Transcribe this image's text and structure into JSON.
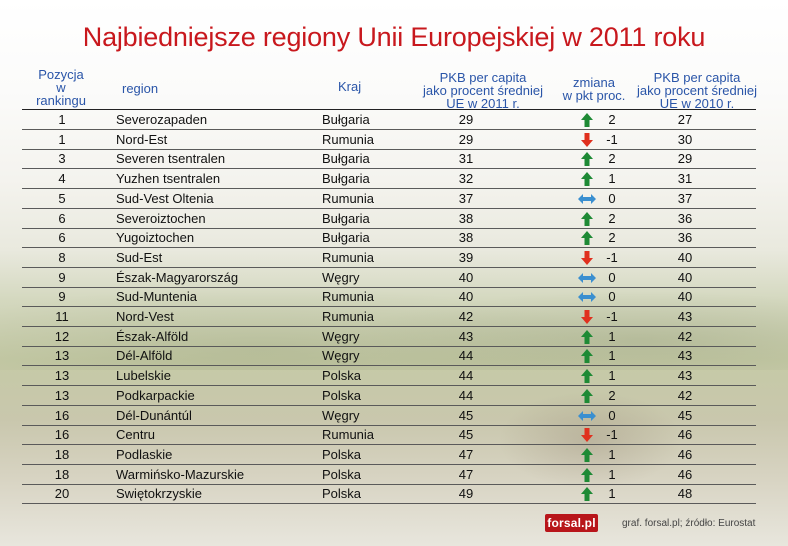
{
  "title": "Najbiedniejsze regiony Unii Europejskiej w 2011 roku",
  "headers": {
    "rank": [
      "Pozycja",
      "w",
      "rankingu"
    ],
    "region": "region",
    "country": "Kraj",
    "gdp2011": [
      "PKB per capita",
      "jako procent średniej",
      "UE w 2011 r."
    ],
    "change": [
      "zmiana",
      "w pkt proc."
    ],
    "gdp2010": [
      "PKB per capita",
      "jako procent średniej",
      "UE w 2010 r."
    ]
  },
  "colors": {
    "up": "#1e8a35",
    "down": "#e0301e",
    "same": "#3a8fd0",
    "title": "#c8181d",
    "header": "#2a55a8"
  },
  "chart_data": {
    "type": "table",
    "title": "Najbiedniejsze regiony Unii Europejskiej w 2011 roku",
    "columns": [
      "Pozycja w rankingu",
      "region",
      "Kraj",
      "PKB per capita jako procent średniej UE w 2011 r.",
      "zmiana w pkt proc.",
      "PKB per capita jako procent średniej UE w 2010 r."
    ],
    "rows": [
      {
        "rank": "1",
        "region": "Severozapaden",
        "country": "Bułgaria",
        "gdp2011": "29",
        "change": "2",
        "trend": "up",
        "gdp2010": "27"
      },
      {
        "rank": "1",
        "region": "Nord-Est",
        "country": "Rumunia",
        "gdp2011": "29",
        "change": "-1",
        "trend": "down",
        "gdp2010": "30"
      },
      {
        "rank": "3",
        "region": "Severen tsentralen",
        "country": "Bułgaria",
        "gdp2011": "31",
        "change": "2",
        "trend": "up",
        "gdp2010": "29"
      },
      {
        "rank": "4",
        "region": "Yuzhen tsentralen",
        "country": "Bułgaria",
        "gdp2011": "32",
        "change": "1",
        "trend": "up",
        "gdp2010": "31"
      },
      {
        "rank": "5",
        "region": "Sud-Vest Oltenia",
        "country": "Rumunia",
        "gdp2011": "37",
        "change": "0",
        "trend": "same",
        "gdp2010": "37"
      },
      {
        "rank": "6",
        "region": "Severoiztochen",
        "country": "Bułgaria",
        "gdp2011": "38",
        "change": "2",
        "trend": "up",
        "gdp2010": "36"
      },
      {
        "rank": "6",
        "region": "Yugoiztochen",
        "country": "Bułgaria",
        "gdp2011": "38",
        "change": "2",
        "trend": "up",
        "gdp2010": "36"
      },
      {
        "rank": "8",
        "region": "Sud-Est",
        "country": "Rumunia",
        "gdp2011": "39",
        "change": "-1",
        "trend": "down",
        "gdp2010": "40"
      },
      {
        "rank": "9",
        "region": "Észak-Magyarország",
        "country": "Węgry",
        "gdp2011": "40",
        "change": "0",
        "trend": "same",
        "gdp2010": "40"
      },
      {
        "rank": "9",
        "region": "Sud-Muntenia",
        "country": "Rumunia",
        "gdp2011": "40",
        "change": "0",
        "trend": "same",
        "gdp2010": "40"
      },
      {
        "rank": "11",
        "region": "Nord-Vest",
        "country": "Rumunia",
        "gdp2011": "42",
        "change": "-1",
        "trend": "down",
        "gdp2010": "43"
      },
      {
        "rank": "12",
        "region": "Észak-Alföld",
        "country": "Węgry",
        "gdp2011": "43",
        "change": "1",
        "trend": "up",
        "gdp2010": "42"
      },
      {
        "rank": "13",
        "region": "Dél-Alföld",
        "country": "Węgry",
        "gdp2011": "44",
        "change": "1",
        "trend": "up",
        "gdp2010": "43"
      },
      {
        "rank": "13",
        "region": "Lubelskie",
        "country": "Polska",
        "gdp2011": "44",
        "change": "1",
        "trend": "up",
        "gdp2010": "43"
      },
      {
        "rank": "13",
        "region": "Podkarpackie",
        "country": "Polska",
        "gdp2011": "44",
        "change": "2",
        "trend": "up",
        "gdp2010": "42"
      },
      {
        "rank": "16",
        "region": "Dél-Dunántúl",
        "country": "Węgry",
        "gdp2011": "45",
        "change": "0",
        "trend": "same",
        "gdp2010": "45"
      },
      {
        "rank": "16",
        "region": "Centru",
        "country": "Rumunia",
        "gdp2011": "45",
        "change": "-1",
        "trend": "down",
        "gdp2010": "46"
      },
      {
        "rank": "18",
        "region": "Podlaskie",
        "country": "Polska",
        "gdp2011": "47",
        "change": "1",
        "trend": "up",
        "gdp2010": "46"
      },
      {
        "rank": "18",
        "region": "Warmińsko-Mazurskie",
        "country": "Polska",
        "gdp2011": "47",
        "change": "1",
        "trend": "up",
        "gdp2010": "46"
      },
      {
        "rank": "20",
        "region": "Swiętokrzyskie",
        "country": "Polska",
        "gdp2011": "49",
        "change": "1",
        "trend": "up",
        "gdp2010": "48"
      }
    ]
  },
  "footer": {
    "logo": "forsal.pl",
    "credits": "graf. forsal.pl;  źródło: Eurostat"
  }
}
